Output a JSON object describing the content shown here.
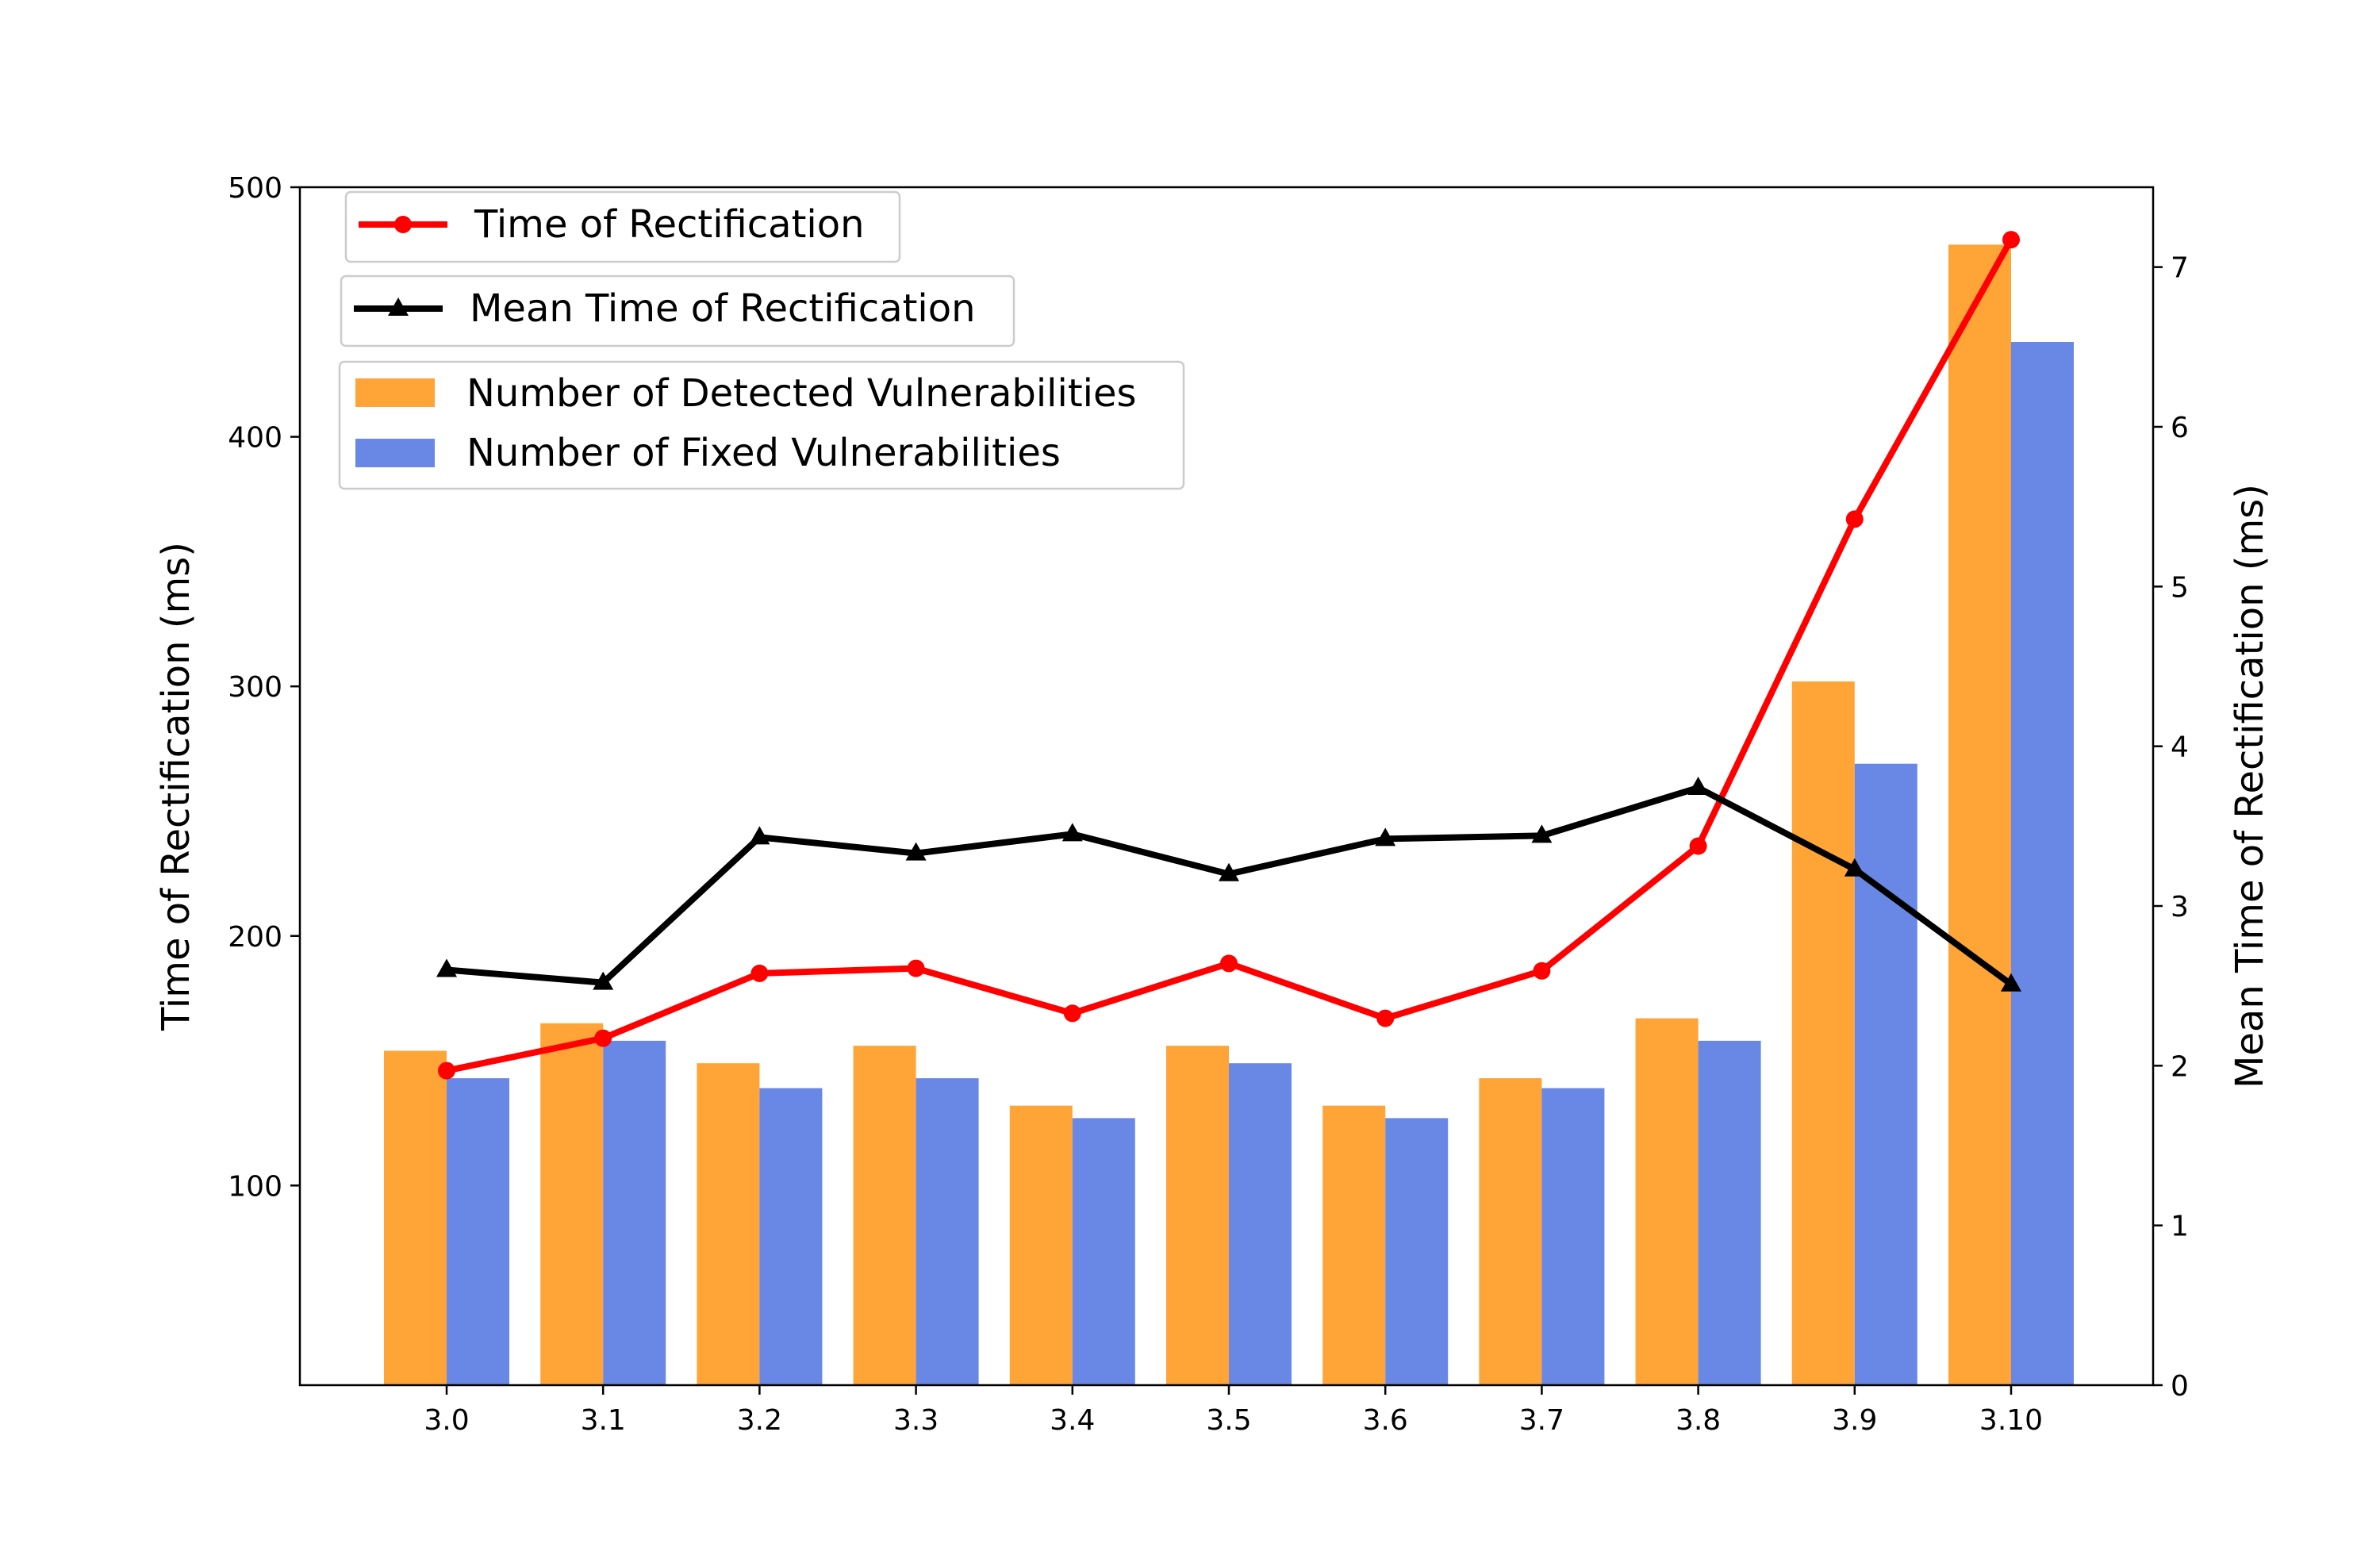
{
  "chart_data": {
    "type": "bar",
    "categories": [
      "3.0",
      "3.1",
      "3.2",
      "3.3",
      "3.4",
      "3.5",
      "3.6",
      "3.7",
      "3.8",
      "3.9",
      "3.10"
    ],
    "ylabel": "Time  of  Rectification  (ms)",
    "y2label": "Mean  Time  of  Rectification  (ms)",
    "ylim": [
      20,
      500
    ],
    "y2lim": [
      0,
      7.5
    ],
    "yticks": [
      100,
      200,
      300,
      400,
      500
    ],
    "y2ticks": [
      0,
      1,
      2,
      3,
      4,
      5,
      6,
      7
    ],
    "grid": false,
    "series": [
      {
        "name": "Number of Detected Vulnerabilities",
        "kind": "bar",
        "axis": "left",
        "color": "#ffa436",
        "values": [
          154,
          165,
          149,
          156,
          132,
          156,
          132,
          143,
          167,
          302,
          477
        ]
      },
      {
        "name": "Number of Fixed Vulnerabilities",
        "kind": "bar",
        "axis": "left",
        "color": "#6988e6",
        "values": [
          143,
          158,
          139,
          143,
          127,
          149,
          127,
          139,
          158,
          269,
          438
        ]
      },
      {
        "name": "Time of Rectification",
        "kind": "line",
        "axis": "left",
        "color": "#ff0000",
        "marker": "circle",
        "values": [
          146,
          159,
          185,
          187,
          169,
          189,
          167,
          186,
          236,
          367,
          479
        ]
      },
      {
        "name": "Mean Time of Rectification",
        "kind": "line",
        "axis": "right",
        "color": "#000000",
        "marker": "triangle",
        "values": [
          2.6,
          2.52,
          3.43,
          3.33,
          3.45,
          3.2,
          3.42,
          3.44,
          3.74,
          3.23,
          2.51
        ]
      }
    ],
    "legend": {
      "placement": "top-left",
      "entries": [
        "Time of Rectification",
        "Mean Time of Rectification",
        "Number of Detected Vulnerabilities",
        "Number of Fixed Vulnerabilities"
      ]
    }
  }
}
